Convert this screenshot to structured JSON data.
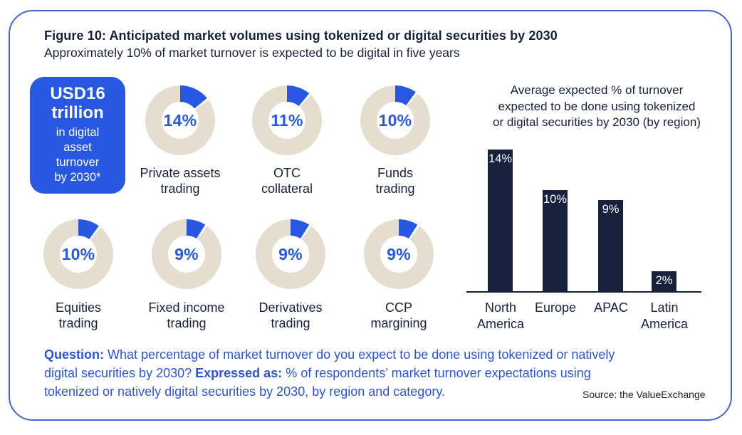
{
  "figure": {
    "title": "Figure 10: Anticipated market volumes using tokenized or digital securities by 2030",
    "subtitle": "Approximately 10% of market turnover is expected to be digital in five years"
  },
  "highlight": {
    "value_line1": "USD16",
    "value_line2": "trillion",
    "caption": "in digital\nasset\nturnover\nby 2030*"
  },
  "question": {
    "label1": "Question:",
    "text1": " What percentage of market turnover do you expect to be done using tokenized or natively\ndigital securities by 2030? ",
    "label2": "Expressed as:",
    "text2": " % of respondents’ market turnover expectations using\ntokenized or natively digital securities by 2030, by region and category."
  },
  "source": "Source: the ValueExchange",
  "colors": {
    "accent_blue": "#2857e2",
    "question_blue": "#2e54d3",
    "navy": "#17213c",
    "beige": "#e5ddcf",
    "card_border": "#4565d2"
  },
  "chart_data": [
    {
      "type": "pie",
      "variant": "donut-grid",
      "description": "Expected % of turnover using tokenized or digital securities by 2030, by category",
      "slice_color": "#2857e2",
      "track_color": "#e5ddcf",
      "items": [
        {
          "label": "Private assets trading",
          "label_display": "Private assets\ntrading",
          "value": 14,
          "value_label": "14%"
        },
        {
          "label": "OTC collateral",
          "label_display": "OTC\ncollateral",
          "value": 11,
          "value_label": "11%"
        },
        {
          "label": "Funds trading",
          "label_display": "Funds\ntrading",
          "value": 10,
          "value_label": "10%"
        },
        {
          "label": "Equities trading",
          "label_display": "Equities\ntrading",
          "value": 10,
          "value_label": "10%"
        },
        {
          "label": "Fixed income trading",
          "label_display": "Fixed income\ntrading",
          "value": 9,
          "value_label": "9%"
        },
        {
          "label": "Derivatives trading",
          "label_display": "Derivatives\ntrading",
          "value": 9,
          "value_label": "9%"
        },
        {
          "label": "CCP margining",
          "label_display": "CCP\nmargining",
          "value": 9,
          "value_label": "9%"
        }
      ]
    },
    {
      "type": "bar",
      "title": "Average expected % of turnover expected to be done using tokenized or digital securities by 2030 (by region)",
      "title_display": "Average expected % of turnover\nexpected to be done using tokenized\nor digital securities by 2030 (by region)",
      "categories": [
        "North America",
        "Europe",
        "APAC",
        "Latin America"
      ],
      "tick_labels": [
        "North\nAmerica",
        "Europe",
        "APAC",
        "Latin\nAmerica"
      ],
      "values": [
        14,
        10,
        9,
        2
      ],
      "value_labels": [
        "14%",
        "10%",
        "9%",
        "2%"
      ],
      "ylim": [
        0,
        15
      ],
      "bar_color": "#17213c",
      "value_label_color": "#ffffff",
      "grid": false,
      "legend": "none"
    }
  ]
}
